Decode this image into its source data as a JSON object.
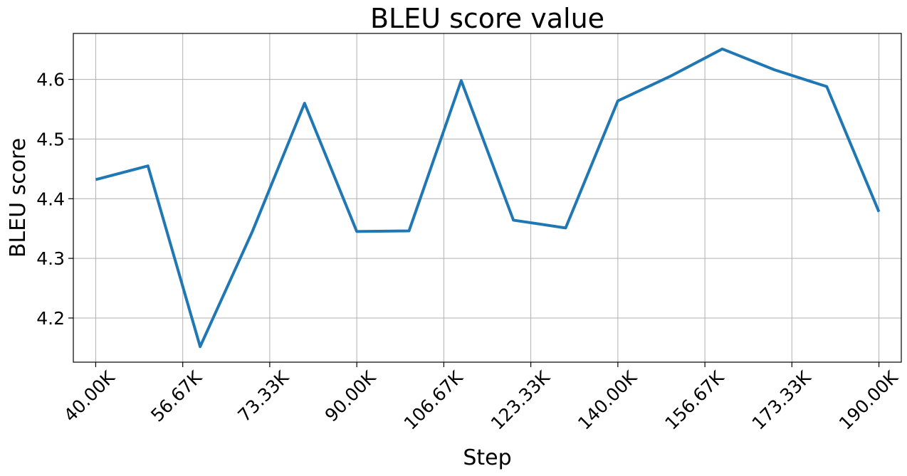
{
  "chart_data": {
    "type": "line",
    "title": "BLEU score value",
    "xlabel": "Step",
    "ylabel": "BLEU score",
    "grid": true,
    "legend": "none",
    "xlim": [
      35714,
      194286
    ],
    "ylim": [
      4.126,
      4.677
    ],
    "x_ticks": [
      40000,
      56670,
      73330,
      90000,
      106670,
      123330,
      140000,
      156670,
      173330,
      190000
    ],
    "x_tick_labels": [
      "40.00K",
      "56.67K",
      "73.33K",
      "90.00K",
      "106.67K",
      "123.33K",
      "140.00K",
      "156.67K",
      "173.33K",
      "190.00K"
    ],
    "y_ticks": [
      4.2,
      4.3,
      4.4,
      4.5,
      4.6
    ],
    "y_tick_labels": [
      "4.2",
      "4.3",
      "4.4",
      "4.5",
      "4.6"
    ],
    "series": [
      {
        "color": "#1f77b4",
        "x": [
          40000,
          50000,
          60000,
          70000,
          80000,
          90000,
          100000,
          110000,
          120000,
          130000,
          140000,
          150000,
          160000,
          170000,
          180000,
          190000
        ],
        "y": [
          4.432,
          4.455,
          4.152,
          4.345,
          4.56,
          4.345,
          4.346,
          4.598,
          4.364,
          4.351,
          4.564,
          4.605,
          4.651,
          4.616,
          4.588,
          4.378
        ]
      }
    ]
  }
}
